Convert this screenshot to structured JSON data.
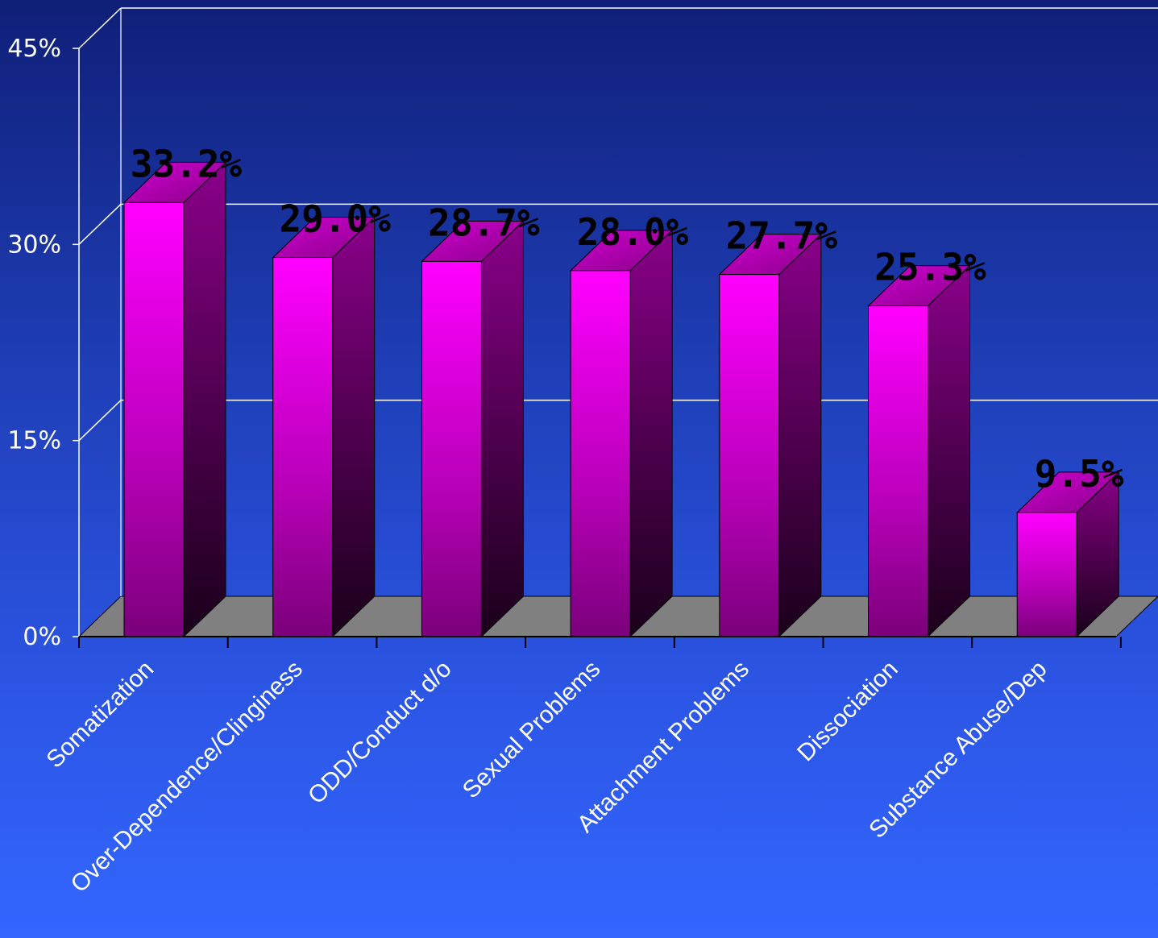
{
  "chart_data": {
    "type": "bar",
    "categories": [
      "Somatization",
      "Over-Dependence/Clinginess",
      "ODD/Conduct d/o",
      "Sexual Problems",
      "Attachment Problems",
      "Dissociation",
      "Substance Abuse/Dep"
    ],
    "values": [
      33.2,
      29.0,
      28.7,
      28.0,
      27.7,
      25.3,
      9.5
    ],
    "data_labels": [
      "33.2%",
      "29.0%",
      "28.7%",
      "28.0%",
      "27.7%",
      "25.3%",
      "9.5%"
    ],
    "y_ticks": [
      0,
      15,
      30,
      45
    ],
    "y_tick_labels": [
      "0%",
      "15%",
      "30%",
      "45%"
    ],
    "ylim": [
      0,
      45
    ],
    "grid": true,
    "legend": "none",
    "colors": {
      "bar_front": "#ff00ff",
      "bar_side": "#800080",
      "floor": "#808080",
      "gridline": "#ffffff",
      "axis": "#000000"
    }
  }
}
